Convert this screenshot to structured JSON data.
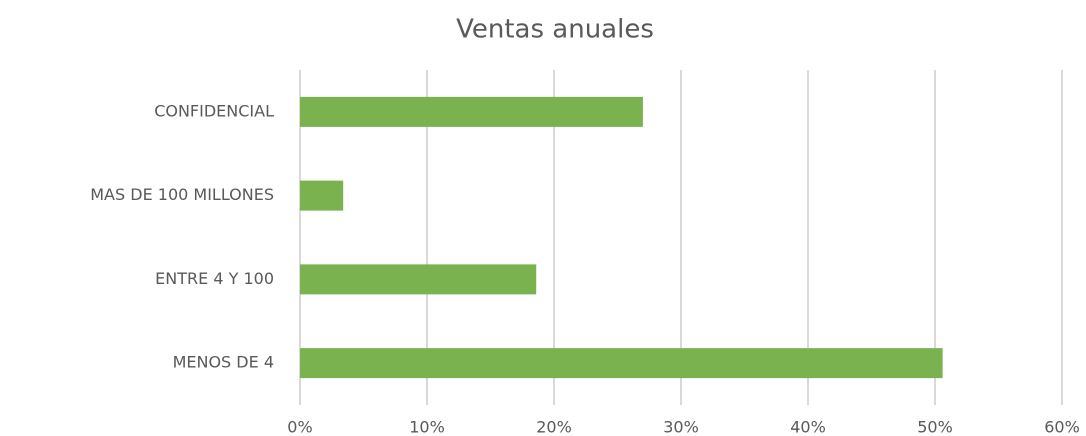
{
  "chart_data": {
    "type": "bar",
    "orientation": "horizontal",
    "title": "Ventas anuales",
    "categories": [
      "CONFIDENCIAL",
      "MAS DE 100 MILLONES",
      "ENTRE 4 Y 100",
      "MENOS DE 4"
    ],
    "values": [
      27.0,
      3.4,
      18.6,
      50.6
    ],
    "color": "#7ab24f",
    "xlim": [
      0,
      60
    ],
    "xticks": [
      {
        "value": 0,
        "label": "0%"
      },
      {
        "value": 10,
        "label": "10%"
      },
      {
        "value": 20,
        "label": "20%"
      },
      {
        "value": 30,
        "label": "30%"
      },
      {
        "value": 40,
        "label": "40%"
      },
      {
        "value": 50,
        "label": "50%"
      },
      {
        "value": 60,
        "label": "60%"
      }
    ],
    "grid": true
  }
}
